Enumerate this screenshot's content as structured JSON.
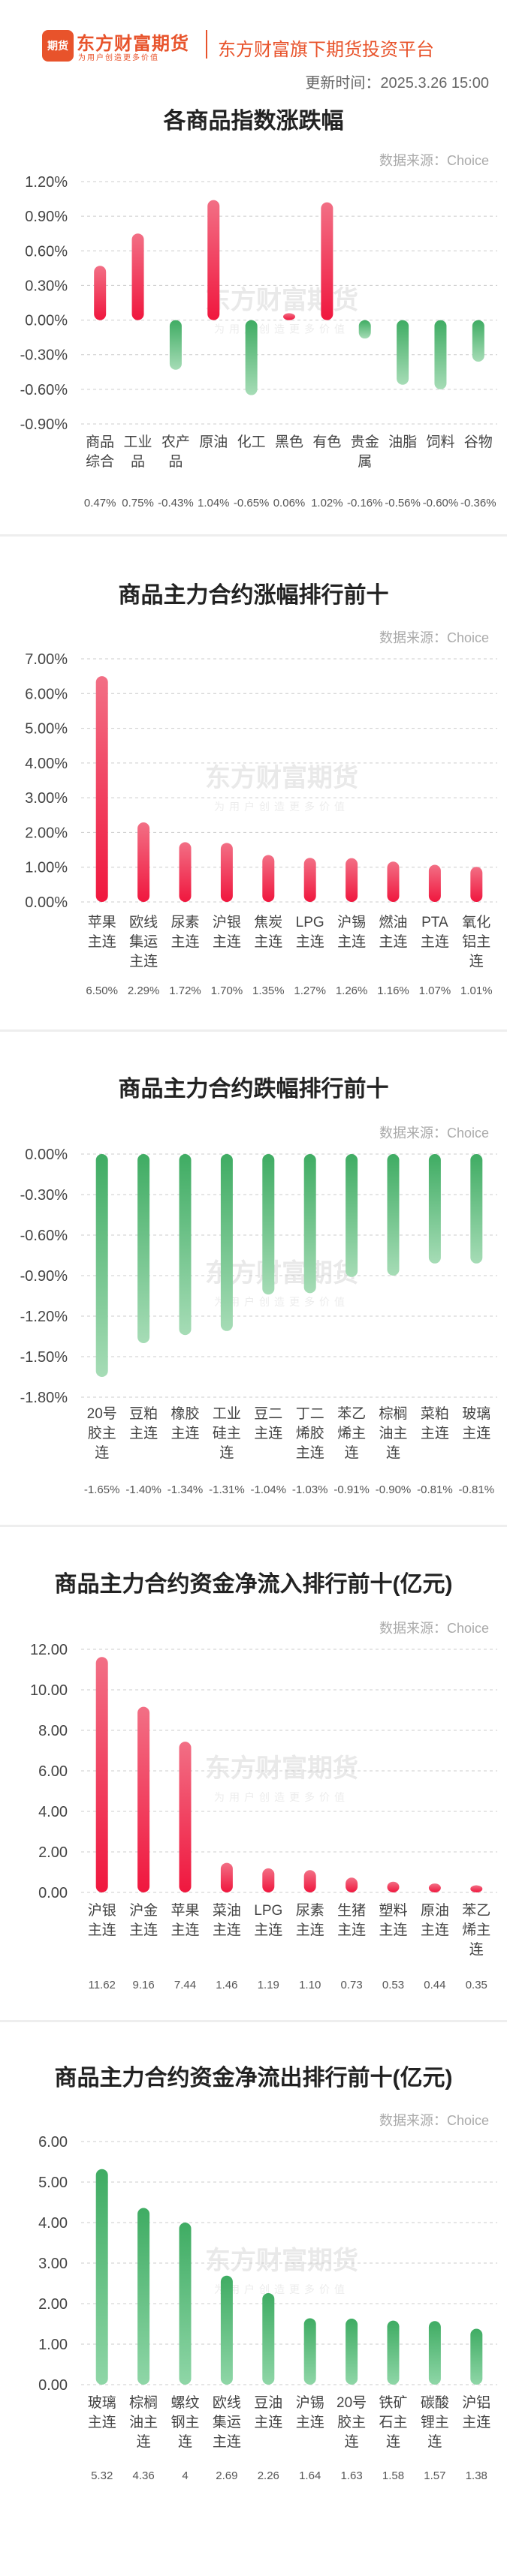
{
  "header": {
    "logo_icon_text": "期货",
    "logo_main": "东方财富期货",
    "logo_sub": "为用户创造更多价值",
    "platform_title": "东方财富旗下期货投资平台",
    "update_time": "更新时间：2025.3.26 15:00"
  },
  "watermark": {
    "main": "东方财富期货",
    "sub": "为用户创造更多价值"
  },
  "colors": {
    "positive_top": "#f26f85",
    "positive_bottom": "#f0173e",
    "negative_top": "#3fac63",
    "negative_bottom": "#a6dcb6",
    "axis_text": "#444444",
    "value_text": "#555555",
    "grid_dash": "#cccccc"
  },
  "sections": [
    {
      "title": "各商品指数涨跌幅",
      "source": "数据来源：Choice",
      "chart_data": {
        "type": "bar",
        "categories": [
          "商品\n综合",
          "工业\n品",
          "农产\n品",
          "原油",
          "化工",
          "黑色",
          "有色",
          "贵金\n属",
          "油脂",
          "饲料",
          "谷物"
        ],
        "values": [
          0.47,
          0.75,
          -0.43,
          1.04,
          -0.65,
          0.06,
          1.02,
          -0.16,
          -0.56,
          -0.6,
          -0.36
        ],
        "value_labels": [
          "0.47%",
          "0.75%",
          "-0.43%",
          "1.04%",
          "-0.65%",
          "0.06%",
          "1.02%",
          "-0.16%",
          "-0.56%",
          "-0.60%",
          "-0.36%"
        ],
        "yticks": [
          "1.20%",
          "0.90%",
          "0.60%",
          "0.30%",
          "0.00%",
          "-0.30%",
          "-0.60%",
          "-0.90%"
        ],
        "ylim": [
          -0.9,
          1.2
        ],
        "bar_color": "sign"
      }
    },
    {
      "title": "商品主力合约涨幅排行前十",
      "source": "数据来源：Choice",
      "chart_data": {
        "type": "bar",
        "categories": [
          "苹果\n主连",
          "欧线\n集运\n主连",
          "尿素\n主连",
          "沪银\n主连",
          "焦炭\n主连",
          "LPG\n主连",
          "沪锡\n主连",
          "燃油\n主连",
          "PTA\n主连",
          "氧化\n铝主\n连"
        ],
        "values": [
          6.5,
          2.29,
          1.72,
          1.7,
          1.35,
          1.27,
          1.26,
          1.16,
          1.07,
          1.01
        ],
        "value_labels": [
          "6.50%",
          "2.29%",
          "1.72%",
          "1.70%",
          "1.35%",
          "1.27%",
          "1.26%",
          "1.16%",
          "1.07%",
          "1.01%"
        ],
        "yticks": [
          "7.00%",
          "6.00%",
          "5.00%",
          "4.00%",
          "3.00%",
          "2.00%",
          "1.00%",
          "0.00%"
        ],
        "ylim": [
          0,
          7
        ],
        "bar_color": "positive"
      }
    },
    {
      "title": "商品主力合约跌幅排行前十",
      "source": "数据来源：Choice",
      "chart_data": {
        "type": "bar",
        "categories": [
          "20号\n胶主\n连",
          "豆粕\n主连",
          "橡胶\n主连",
          "工业\n硅主\n连",
          "豆二\n主连",
          "丁二\n烯胶\n主连",
          "苯乙\n烯主\n连",
          "棕榈\n油主\n连",
          "菜粕\n主连",
          "玻璃\n主连"
        ],
        "values": [
          -1.65,
          -1.4,
          -1.34,
          -1.31,
          -1.04,
          -1.03,
          -0.91,
          -0.9,
          -0.81,
          -0.81
        ],
        "value_labels": [
          "-1.65%",
          "-1.40%",
          "-1.34%",
          "-1.31%",
          "-1.04%",
          "-1.03%",
          "-0.91%",
          "-0.90%",
          "-0.81%",
          "-0.81%"
        ],
        "yticks": [
          "0.00%",
          "-0.30%",
          "-0.60%",
          "-0.90%",
          "-1.20%",
          "-1.50%",
          "-1.80%"
        ],
        "ylim": [
          -1.8,
          0
        ],
        "bar_color": "negative"
      }
    },
    {
      "title": "商品主力合约资金净流入排行前十(亿元)",
      "source": "数据来源：Choice",
      "chart_data": {
        "type": "bar",
        "categories": [
          "沪银\n主连",
          "沪金\n主连",
          "苹果\n主连",
          "菜油\n主连",
          "LPG\n主连",
          "尿素\n主连",
          "生猪\n主连",
          "塑料\n主连",
          "原油\n主连",
          "苯乙\n烯主\n连"
        ],
        "values": [
          11.62,
          9.16,
          7.44,
          1.46,
          1.19,
          1.1,
          0.73,
          0.53,
          0.44,
          0.35
        ],
        "value_labels": [
          "11.62",
          "9.16",
          "7.44",
          "1.46",
          "1.19",
          "1.10",
          "0.73",
          "0.53",
          "0.44",
          "0.35"
        ],
        "yticks": [
          "12.00",
          "10.00",
          "8.00",
          "6.00",
          "4.00",
          "2.00",
          "0.00"
        ],
        "ylim": [
          0,
          12
        ],
        "bar_color": "positive"
      }
    },
    {
      "title": "商品主力合约资金净流出排行前十(亿元)",
      "source": "数据来源：Choice",
      "chart_data": {
        "type": "bar",
        "categories": [
          "玻璃\n主连",
          "棕榈\n油主\n连",
          "螺纹\n钢主\n连",
          "欧线\n集运\n主连",
          "豆油\n主连",
          "沪锡\n主连",
          "20号\n胶主\n连",
          "铁矿\n石主\n连",
          "碳酸\n锂主\n连",
          "沪铝\n主连"
        ],
        "values": [
          5.32,
          4.36,
          4,
          2.69,
          2.26,
          1.64,
          1.63,
          1.58,
          1.57,
          1.38
        ],
        "value_labels": [
          "5.32",
          "4.36",
          "4",
          "2.69",
          "2.26",
          "1.64",
          "1.63",
          "1.58",
          "1.57",
          "1.38"
        ],
        "yticks": [
          "6.00",
          "5.00",
          "4.00",
          "3.00",
          "2.00",
          "1.00",
          "0.00"
        ],
        "ylim": [
          0,
          6
        ],
        "bar_color": "outflow"
      }
    }
  ]
}
